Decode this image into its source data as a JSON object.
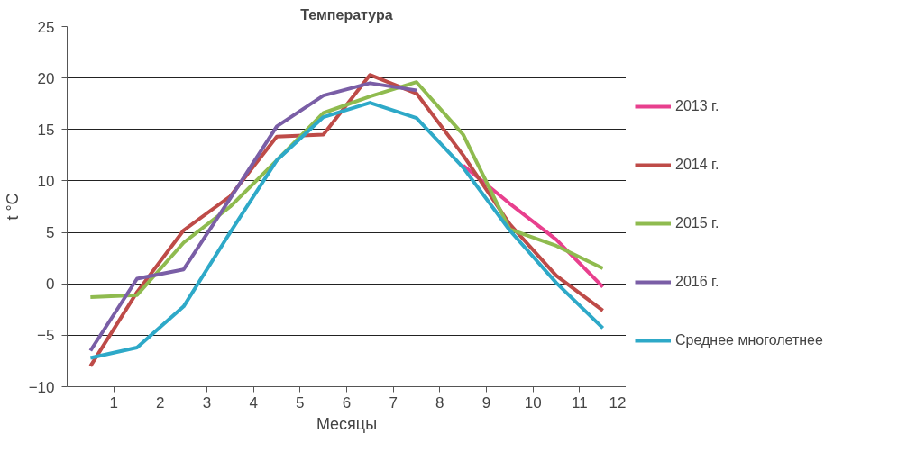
{
  "chart_data": {
    "type": "line",
    "title": "Температура",
    "xlabel": "Месяцы",
    "ylabel": "t °C",
    "x": [
      0.5,
      1.5,
      2.5,
      3.5,
      4.5,
      5.5,
      6.5,
      7.5,
      8.5,
      9.5,
      10.5,
      11.5
    ],
    "xlim": [
      0,
      12
    ],
    "xticks": [
      1,
      2,
      3,
      4,
      5,
      6,
      7,
      8,
      9,
      10,
      11,
      12
    ],
    "ylim": [
      -10,
      25
    ],
    "yticks": [
      {
        "value": -10,
        "label": "−10"
      },
      {
        "value": -5,
        "label": "−5"
      },
      0,
      5,
      10,
      15,
      20,
      25
    ],
    "grid": "y",
    "legend": "right",
    "marker": "none",
    "line_style": "solid",
    "series": [
      {
        "name": "2013 г.",
        "color": "#e8408e",
        "values": [
          null,
          null,
          null,
          null,
          null,
          null,
          null,
          null,
          11.5,
          7.8,
          4.3,
          -0.3
        ]
      },
      {
        "name": "2014 г.",
        "color": "#be4b48",
        "values": [
          -8.0,
          -0.8,
          5.2,
          8.5,
          14.3,
          14.5,
          20.3,
          18.5,
          12.5,
          5.8,
          0.8,
          -2.6
        ]
      },
      {
        "name": "2015 г.",
        "color": "#8fbb4f",
        "values": [
          -1.3,
          -1.1,
          4.0,
          7.5,
          12.0,
          16.6,
          18.2,
          19.6,
          14.5,
          5.3,
          3.7,
          1.5
        ]
      },
      {
        "name": "2016 г.",
        "color": "#7a5ea6",
        "values": [
          -6.5,
          0.5,
          1.4,
          8.3,
          15.3,
          18.3,
          19.5,
          18.8,
          null,
          null,
          null,
          null
        ]
      },
      {
        "name": "Среднее многолетнее",
        "color": "#2ea9c8",
        "values": [
          -7.2,
          -6.2,
          -2.2,
          5.0,
          12.0,
          16.2,
          17.6,
          16.1,
          11.3,
          5.2,
          0.1,
          -4.3
        ]
      }
    ]
  }
}
